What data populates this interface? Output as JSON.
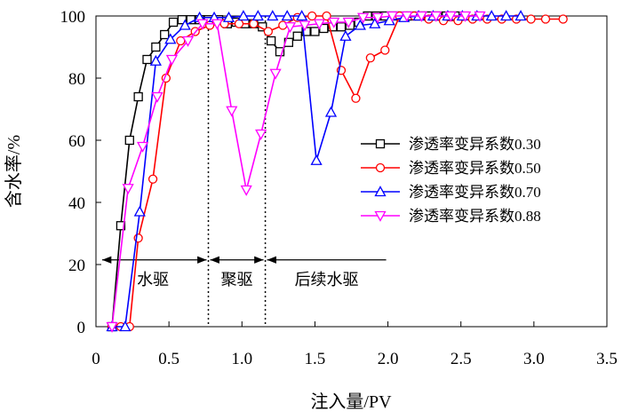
{
  "chart_data": {
    "type": "line",
    "title": "",
    "xlabel": "注入量/PV",
    "ylabel": "含水率/%",
    "xlim": [
      0,
      3.5
    ],
    "ylim": [
      0,
      100
    ],
    "xticks": [
      0,
      0.5,
      1.0,
      1.5,
      2.0,
      2.5,
      3.0,
      3.5
    ],
    "xtick_labels": [
      "0",
      "0.5",
      "1.0",
      "1.5",
      "2.0",
      "2.5",
      "3.0",
      "3.5"
    ],
    "yticks": [
      0,
      20,
      40,
      60,
      80,
      100
    ],
    "ytick_labels": [
      "0",
      "20",
      "40",
      "60",
      "80",
      "100"
    ],
    "grid": false,
    "legend_position": "right",
    "series": [
      {
        "name": "渗透率变异系数0.30",
        "color": "#000000",
        "marker": "square",
        "x": [
          0.11,
          0.17,
          0.23,
          0.29,
          0.35,
          0.41,
          0.47,
          0.53,
          0.59,
          0.65,
          0.71,
          0.77,
          0.84,
          0.9,
          0.96,
          1.02,
          1.08,
          1.14,
          1.2,
          1.26,
          1.32,
          1.38,
          1.44,
          1.5,
          1.56,
          1.62,
          1.68,
          1.74,
          1.8,
          1.86,
          1.92,
          1.98,
          2.04,
          2.1,
          2.16,
          2.22,
          2.28,
          2.34,
          2.4,
          2.46
        ],
        "y": [
          0,
          32.5,
          60,
          74,
          86,
          90,
          94,
          98,
          98.8,
          98.8,
          98.8,
          98.8,
          98.8,
          97.5,
          98,
          97.5,
          97.5,
          96.5,
          92,
          88.5,
          91.5,
          93.5,
          95,
          95,
          96,
          96.5,
          96.5,
          97,
          98,
          100,
          100,
          100,
          100,
          100,
          100,
          100,
          100,
          100,
          100,
          100
        ]
      },
      {
        "name": "渗透率变异系数0.50",
        "color": "#ff0000",
        "marker": "circle",
        "x": [
          0.11,
          0.17,
          0.23,
          0.29,
          0.39,
          0.48,
          0.58,
          0.68,
          0.78,
          0.88,
          0.98,
          1.08,
          1.18,
          1.28,
          1.38,
          1.48,
          1.58,
          1.68,
          1.78,
          1.88,
          1.98,
          2.08,
          2.18,
          2.28,
          2.38,
          2.48,
          2.58,
          2.68,
          2.78,
          2.88,
          2.98,
          3.08,
          3.2
        ],
        "y": [
          0,
          0,
          0,
          28.5,
          47.5,
          80,
          92,
          95,
          97,
          97.5,
          97.5,
          97.5,
          95,
          97,
          99.5,
          100,
          100,
          82.5,
          73.5,
          86.5,
          89,
          100,
          100,
          99,
          98.5,
          98.5,
          99,
          99,
          99,
          99,
          99,
          99,
          99
        ]
      },
      {
        "name": "渗透率变异系数0.70",
        "color": "#0000ff",
        "marker": "triangle-up",
        "x": [
          0.11,
          0.2,
          0.3,
          0.41,
          0.51,
          0.61,
          0.71,
          0.81,
          0.91,
          1.01,
          1.11,
          1.21,
          1.31,
          1.41,
          1.51,
          1.61,
          1.71,
          1.81,
          1.91,
          2.01,
          2.11,
          2.21,
          2.31,
          2.41,
          2.51,
          2.61,
          2.71,
          2.81,
          2.91
        ],
        "y": [
          0,
          0,
          37,
          85.5,
          92.5,
          97,
          99.5,
          99.5,
          99.5,
          100,
          100,
          100,
          100,
          100,
          53.5,
          69,
          93.5,
          97,
          97.5,
          98.5,
          99.5,
          100,
          100,
          100,
          100,
          100,
          100,
          100,
          100
        ]
      },
      {
        "name": "渗透率变异系数0.88",
        "color": "#ff00ff",
        "marker": "triangle-down",
        "x": [
          0.11,
          0.22,
          0.32,
          0.42,
          0.52,
          0.63,
          0.73,
          0.83,
          0.93,
          1.03,
          1.13,
          1.23,
          1.33,
          1.43,
          1.53,
          1.63,
          1.73,
          1.83,
          1.93,
          2.03,
          2.13,
          2.23,
          2.33,
          2.43,
          2.53,
          2.63
        ],
        "y": [
          0,
          44.5,
          58,
          74,
          86,
          92,
          97.5,
          97.5,
          69.5,
          44,
          62,
          81.5,
          96.5,
          97,
          97.5,
          98,
          98,
          99.5,
          99.5,
          100,
          100,
          100,
          100,
          100,
          100,
          100
        ]
      }
    ],
    "boundaries_x": [
      0.77,
      1.16
    ],
    "annotations": [
      {
        "text": "水驱",
        "x_from": 0.03,
        "x_to": 0.77
      },
      {
        "text": "聚驱",
        "x_from": 0.77,
        "x_to": 1.16
      },
      {
        "text": "后续水驱",
        "x_from": 1.16,
        "x_to": 2.0
      }
    ],
    "arrow_y": 21.5
  }
}
